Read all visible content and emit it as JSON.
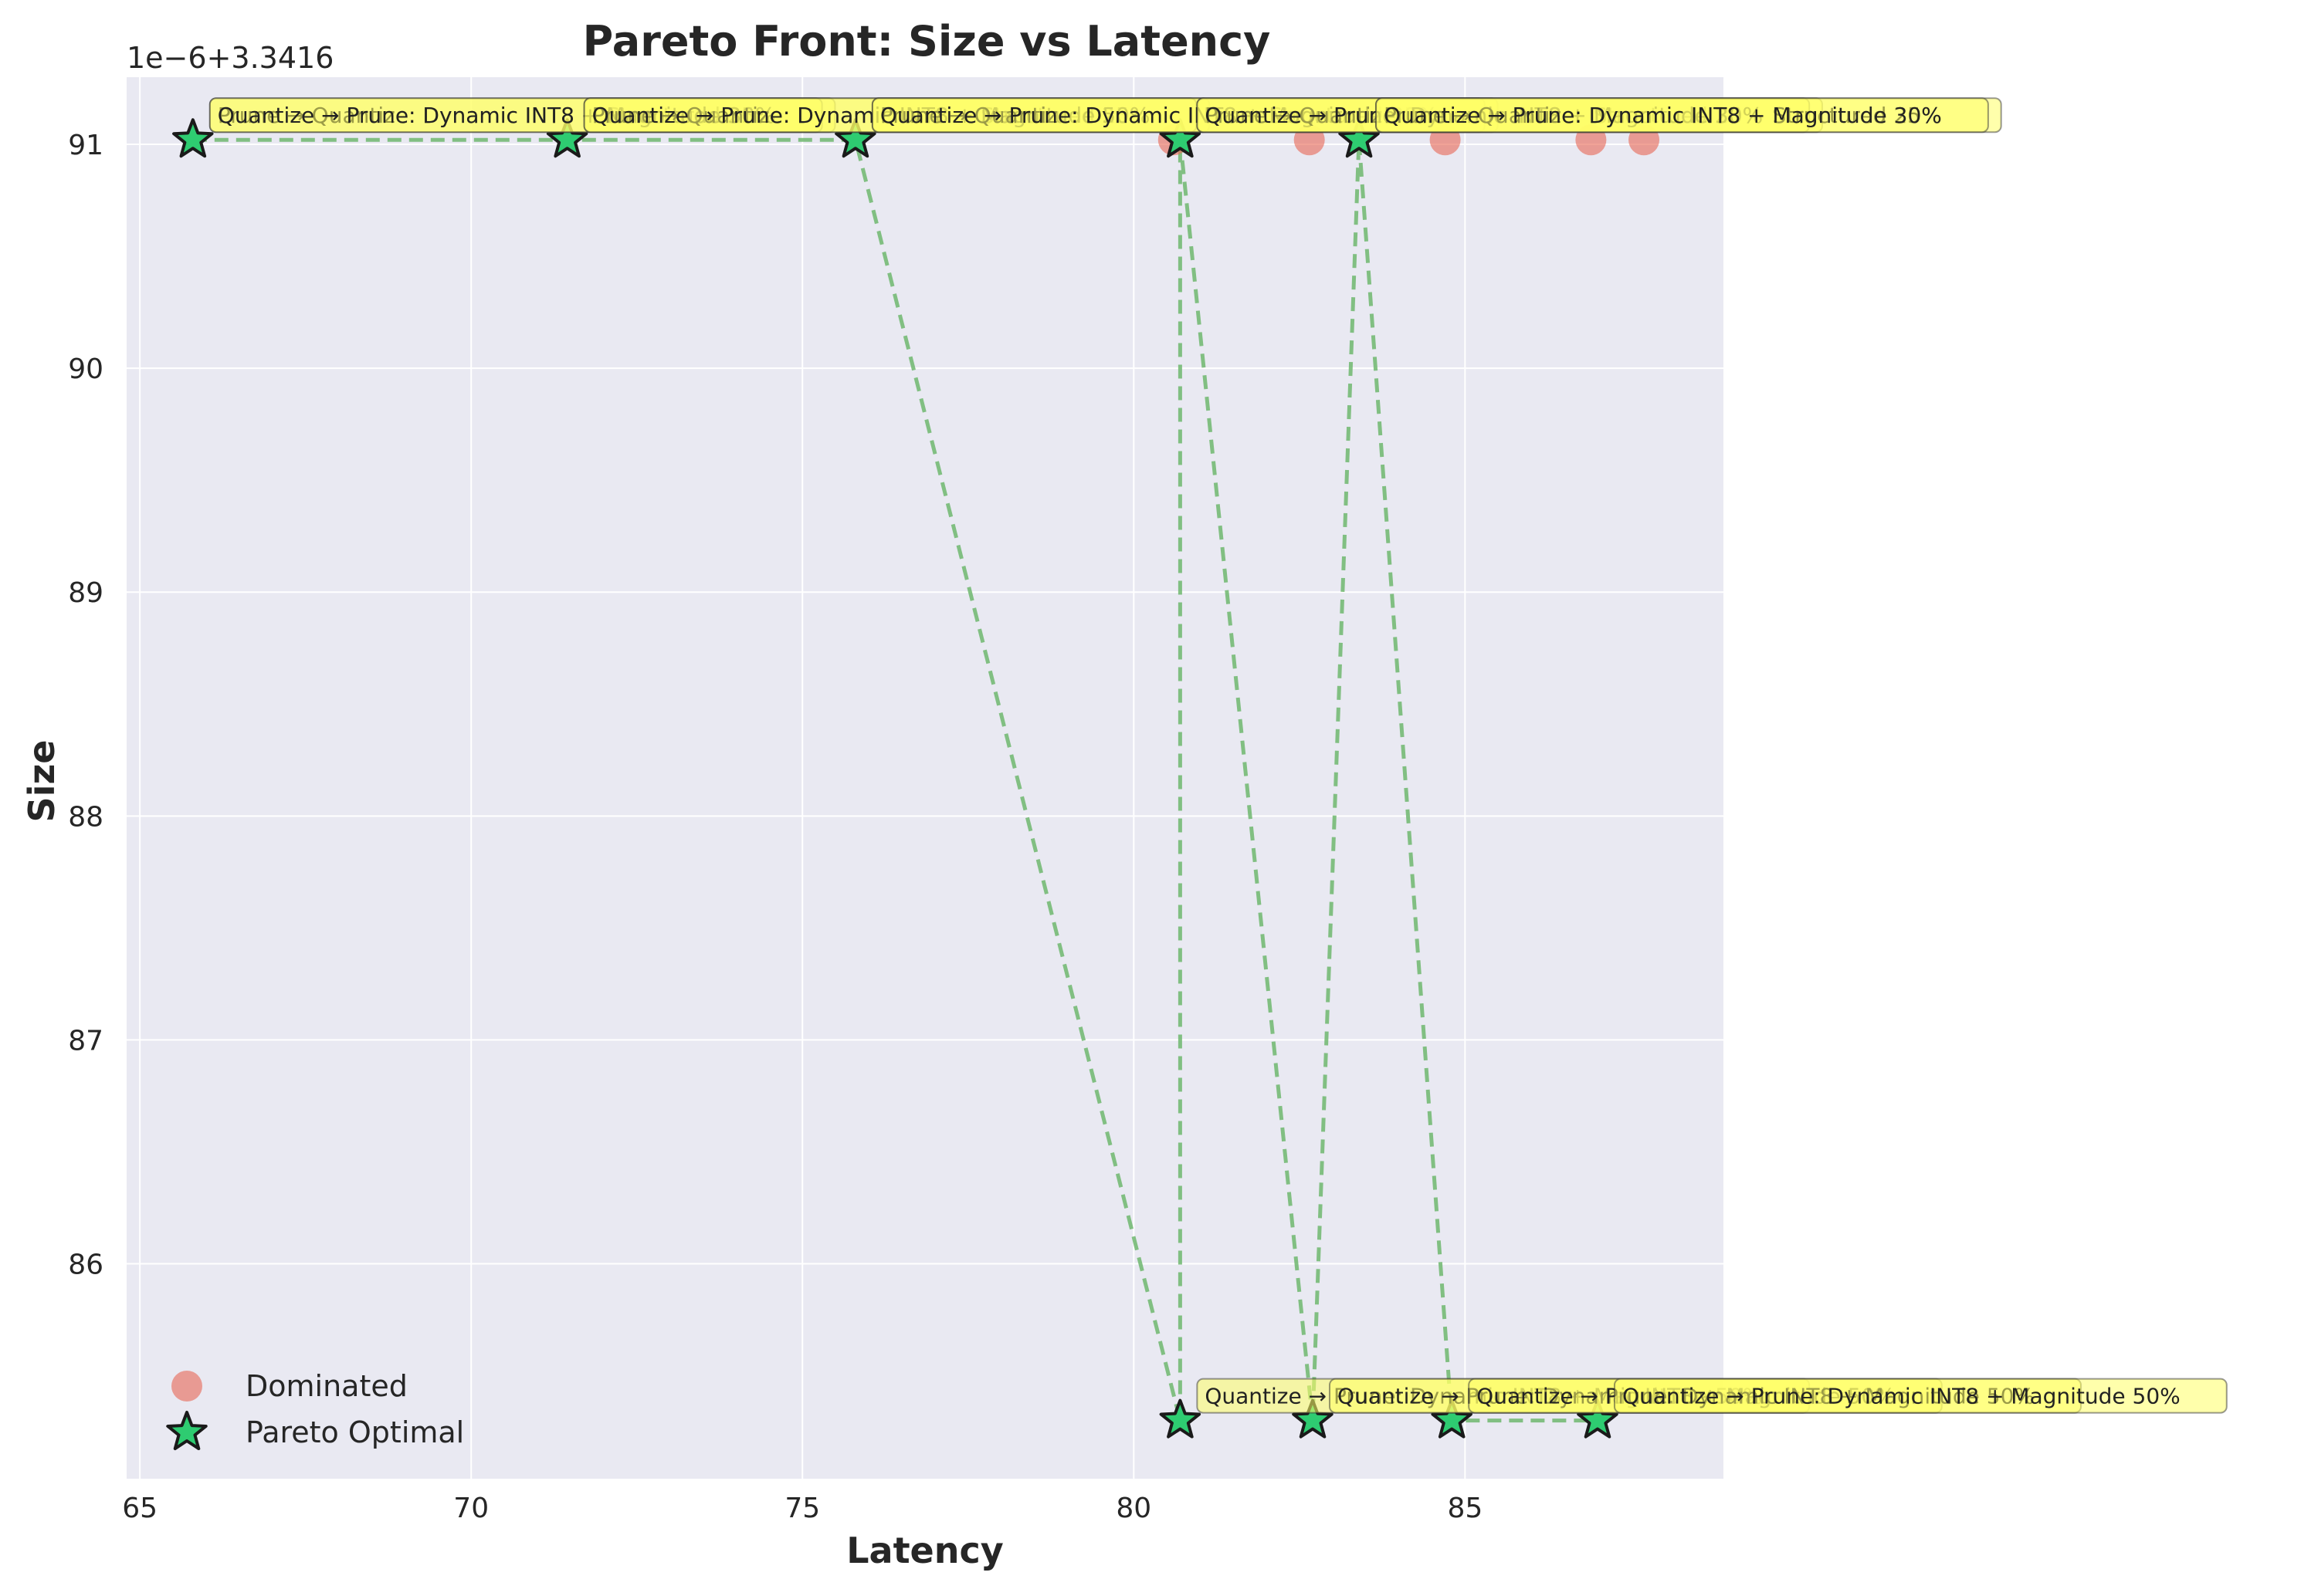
{
  "chart_data": {
    "type": "scatter",
    "title": "Pareto Front: Size vs Latency",
    "xlabel": "Latency",
    "ylabel": "Size",
    "offset_label": "1e−6+3.3416",
    "xlim": [
      64.8,
      88.9
    ],
    "ylim": [
      85.04,
      91.3
    ],
    "x_ticks": [
      65,
      70,
      75,
      80,
      85
    ],
    "y_ticks": [
      86,
      87,
      88,
      89,
      90,
      91
    ],
    "grid": true,
    "legend_position": "lower-left",
    "colors": {
      "dominated": "#e8705f",
      "pareto_fill": "#2ecc71",
      "pareto_edge": "#1a1a1a",
      "front_line": "#6fb76f",
      "annotation_bg": "#ffff66",
      "plot_bg": "#e9e9f2",
      "grid": "#ffffff"
    },
    "series": [
      {
        "name": "Dominated",
        "marker": "circle",
        "points": [
          {
            "x": 80.6,
            "y": 91.02
          },
          {
            "x": 82.65,
            "y": 91.02
          },
          {
            "x": 84.7,
            "y": 91.02
          },
          {
            "x": 86.9,
            "y": 91.02
          },
          {
            "x": 87.7,
            "y": 91.02
          }
        ]
      },
      {
        "name": "Pareto Optimal",
        "marker": "star",
        "points": [
          {
            "x": 65.8,
            "y": 91.02
          },
          {
            "x": 71.45,
            "y": 91.02
          },
          {
            "x": 75.8,
            "y": 91.02
          },
          {
            "x": 80.7,
            "y": 91.02
          },
          {
            "x": 83.4,
            "y": 91.02
          },
          {
            "x": 80.7,
            "y": 85.3
          },
          {
            "x": 82.7,
            "y": 85.3
          },
          {
            "x": 84.8,
            "y": 85.3
          },
          {
            "x": 87.0,
            "y": 85.3
          }
        ]
      }
    ],
    "front_line": [
      {
        "x": 65.8,
        "y": 91.02
      },
      {
        "x": 71.45,
        "y": 91.02
      },
      {
        "x": 75.8,
        "y": 91.02
      },
      {
        "x": 80.7,
        "y": 85.3
      },
      {
        "x": 80.7,
        "y": 91.02
      },
      {
        "x": 82.7,
        "y": 85.3
      },
      {
        "x": 83.4,
        "y": 91.02
      },
      {
        "x": 84.8,
        "y": 85.3
      },
      {
        "x": 87.0,
        "y": 85.3
      }
    ],
    "annotations": [
      {
        "x": 65.8,
        "y": 91.02,
        "text": "Prune → Quantize: Dynamic INT8 + Structured 25%"
      },
      {
        "x": 65.8,
        "y": 91.02,
        "text": "Quantize → Prune: Dynamic INT8 + Magnitude 30%"
      },
      {
        "x": 71.45,
        "y": 91.02,
        "text": "Prune → Quantize: Dynamic INT8 + Structured 25%"
      },
      {
        "x": 71.45,
        "y": 91.02,
        "text": "Quantize → Prune: Dynamic INT8 + Magnitude 50%"
      },
      {
        "x": 75.8,
        "y": 91.02,
        "text": "Prune → Quantize: Dynamic INT8 + Structured 25%"
      },
      {
        "x": 75.8,
        "y": 91.02,
        "text": "Quantize → Prune: Dynamic INT8 + Magnitude 30%"
      },
      {
        "x": 80.7,
        "y": 91.02,
        "text": "Prune → Quantize: Dynamic INT8 + Structured 25%"
      },
      {
        "x": 80.7,
        "y": 91.02,
        "text": "Quantize → Prune: Dynamic INT8 + Magnitude 30%"
      },
      {
        "x": 83.4,
        "y": 91.02,
        "text": "Prune → Quantize: Dynamic INT8 + Structured 25%"
      },
      {
        "x": 83.4,
        "y": 91.02,
        "text": "Quantize → Prune: Dynamic INT8 + Magnitude 30%"
      },
      {
        "x": 80.7,
        "y": 85.3,
        "text": "Quantize → Prune: Dynamic INT8 + Magnitude 50%"
      },
      {
        "x": 82.7,
        "y": 85.3,
        "text": "Quantize → Prune: Dynamic INT8 + Magnitude 50%"
      },
      {
        "x": 84.8,
        "y": 85.3,
        "text": "Quantize → Prune: Dynamic INT8 + Magnitude 50%"
      },
      {
        "x": 87.0,
        "y": 85.3,
        "text": "Quantize → Prune: Dynamic INT8 + Magnitude 50%"
      }
    ]
  }
}
